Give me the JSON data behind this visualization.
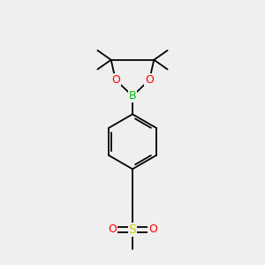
{
  "bg_color": "#efefef",
  "atom_colors": {
    "B": "#00bb00",
    "O": "#ff0000",
    "S": "#cccc00",
    "C": "#000000"
  },
  "bond_color": "#000000",
  "bond_width": 1.3,
  "figsize": [
    3.0,
    3.0
  ],
  "dpi": 100
}
